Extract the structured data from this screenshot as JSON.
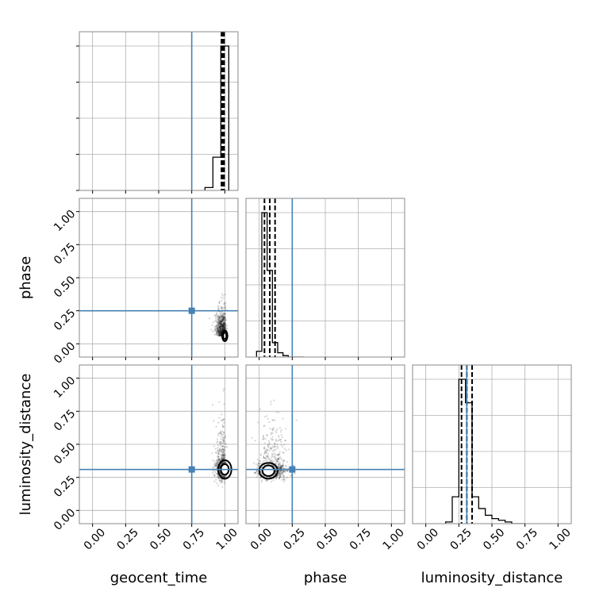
{
  "chart_data": {
    "type": "corner",
    "params": [
      "geocent_time",
      "phase",
      "luminosity_distance"
    ],
    "axis_labels": [
      "geocent_time",
      "phase",
      "luminosity_distance"
    ],
    "range": [
      -0.1,
      1.1
    ],
    "ticks": [
      0.0,
      0.25,
      0.5,
      0.75,
      1.0
    ],
    "tick_labels": [
      "0.00",
      "0.25",
      "0.50",
      "0.75",
      "1.00"
    ],
    "grid": true,
    "truth": {
      "geocent_time": 0.75,
      "phase": 0.25,
      "luminosity_distance": 0.31
    },
    "colors": {
      "truth": "#4682b4",
      "hist": "#000000",
      "samples": "#222222",
      "grid": "#b0b0b0"
    },
    "histograms": {
      "geocent_time": {
        "bin_edges": [
          0.85,
          0.91,
          0.97,
          1.03
        ],
        "heights": [
          0.02,
          0.23,
          1.0
        ],
        "quantiles": [
          0.975,
          0.985,
          0.995
        ]
      },
      "phase": {
        "bin_edges": [
          -0.02,
          0.02,
          0.06,
          0.1,
          0.14,
          0.18,
          0.22,
          0.26,
          0.3,
          0.34
        ],
        "heights": [
          0.04,
          1.0,
          0.6,
          0.1,
          0.03,
          0.01,
          0.0,
          0.0,
          0.0
        ],
        "quantiles": [
          0.04,
          0.08,
          0.12
        ]
      },
      "luminosity_distance": {
        "bin_edges": [
          0.15,
          0.2,
          0.25,
          0.3,
          0.35,
          0.4,
          0.45,
          0.5,
          0.55,
          0.6,
          0.65,
          0.7,
          0.75
        ],
        "heights": [
          0.01,
          0.16,
          0.86,
          0.72,
          0.16,
          0.09,
          0.05,
          0.03,
          0.02,
          0.01,
          0.0,
          0.0
        ],
        "quantiles": [
          0.27,
          0.31,
          0.35
        ]
      }
    },
    "scatter_2d": [
      {
        "x": "geocent_time",
        "y": "phase",
        "center": [
          1.0,
          0.06
        ],
        "contour_levels": [
          {
            "rx": 0.012,
            "ry": 0.025
          },
          {
            "rx": 0.02,
            "ry": 0.04
          }
        ]
      },
      {
        "x": "geocent_time",
        "y": "luminosity_distance",
        "center": [
          1.0,
          0.31
        ],
        "contour_levels": [
          {
            "rx": 0.03,
            "ry": 0.04
          },
          {
            "rx": 0.05,
            "ry": 0.07
          }
        ]
      },
      {
        "x": "phase",
        "y": "luminosity_distance",
        "center": [
          0.07,
          0.3
        ],
        "contour_levels": [
          {
            "rx": 0.045,
            "ry": 0.04
          },
          {
            "rx": 0.07,
            "ry": 0.06
          }
        ]
      }
    ]
  }
}
